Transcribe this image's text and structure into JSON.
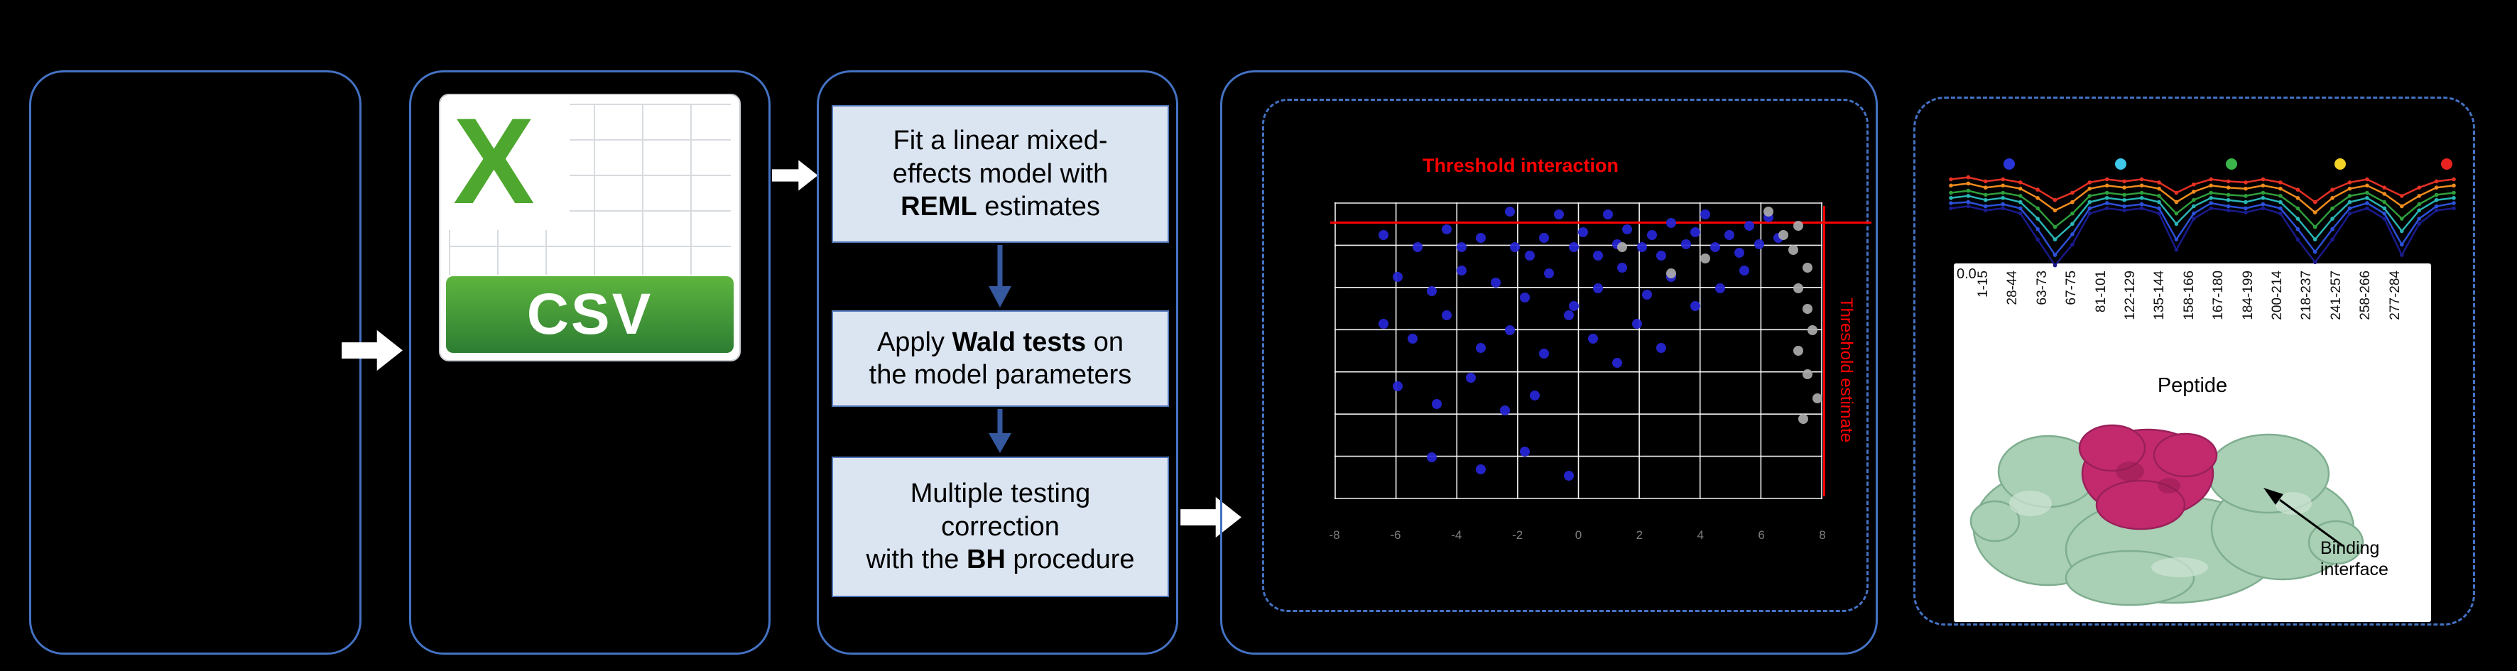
{
  "colors": {
    "box_border": "#4472c4",
    "step_fill": "#dbe5f1",
    "step_border": "#4f74b8",
    "flow_arrow": "#ffffff",
    "down_arrow": "#35589f",
    "threshold_red": "#ff0000",
    "scatter_blue": "#2626d8",
    "scatter_gray": "#ababab",
    "grid_line": "#ffffff",
    "panel_bg": "#ffffff",
    "protein_green": "#a9cfb4",
    "protein_green_edge": "#7fae90",
    "protein_magenta": "#c32a6e",
    "protein_magenta_edge": "#99205a",
    "csv_green": "#4ea72e",
    "csv_banner_top": "#5db53e",
    "csv_banner_bottom": "#2d7d32"
  },
  "csv": {
    "x_logo": "X",
    "label": "CSV"
  },
  "steps": [
    {
      "segments": [
        {
          "text": "Fit a linear mixed-\neffects model with\n"
        },
        {
          "text": "REML",
          "bold": true
        },
        {
          "text": " estimates"
        }
      ]
    },
    {
      "segments": [
        {
          "text": "Apply "
        },
        {
          "text": "Wald tests",
          "bold": true
        },
        {
          "text": " on\nthe model parameters"
        }
      ]
    },
    {
      "segments": [
        {
          "text": "Multiple testing\ncorrection\nwith the "
        },
        {
          "text": "BH",
          "bold": true
        },
        {
          "text": " procedure"
        }
      ]
    }
  ],
  "structure": {
    "label": "Binding interface"
  },
  "chart_data": [
    {
      "type": "scatter",
      "title": "Threshold interaction",
      "right_axis_label": "Threshold estimate",
      "grid": {
        "cols": 9,
        "rows": 8
      },
      "x_ticklabels": [
        "-8",
        "-6",
        "-4",
        "-2",
        "0",
        "2",
        "4",
        "6",
        "8"
      ],
      "thresholds": {
        "horizontal_pct_from_top": 7.2,
        "vertical_pct_from_left": 100.2
      },
      "series": [
        {
          "name": "significant",
          "color_key": "scatter_blue",
          "points": [
            [
              10,
              11
            ],
            [
              17,
              15
            ],
            [
              23,
              9
            ],
            [
              26,
              15
            ],
            [
              30,
              12
            ],
            [
              36,
              3
            ],
            [
              37,
              15
            ],
            [
              40,
              18
            ],
            [
              43,
              12
            ],
            [
              46,
              4
            ],
            [
              49,
              15
            ],
            [
              51,
              10
            ],
            [
              54,
              18
            ],
            [
              56,
              4
            ],
            [
              58,
              14
            ],
            [
              60,
              9
            ],
            [
              63,
              15
            ],
            [
              65,
              11
            ],
            [
              67,
              18
            ],
            [
              69,
              7
            ],
            [
              72,
              14
            ],
            [
              74,
              10
            ],
            [
              76,
              4
            ],
            [
              78,
              15
            ],
            [
              81,
              11
            ],
            [
              83,
              17
            ],
            [
              85,
              8
            ],
            [
              87,
              14
            ],
            [
              89,
              5
            ],
            [
              91,
              12
            ],
            [
              13,
              25
            ],
            [
              20,
              30
            ],
            [
              26,
              23
            ],
            [
              33,
              27
            ],
            [
              39,
              32
            ],
            [
              44,
              24
            ],
            [
              49,
              35
            ],
            [
              54,
              29
            ],
            [
              59,
              22
            ],
            [
              64,
              31
            ],
            [
              69,
              25
            ],
            [
              74,
              35
            ],
            [
              79,
              29
            ],
            [
              84,
              23
            ],
            [
              10,
              41
            ],
            [
              16,
              46
            ],
            [
              23,
              38
            ],
            [
              30,
              49
            ],
            [
              36,
              43
            ],
            [
              43,
              51
            ],
            [
              48,
              38
            ],
            [
              53,
              46
            ],
            [
              58,
              54
            ],
            [
              62,
              41
            ],
            [
              67,
              49
            ],
            [
              13,
              62
            ],
            [
              21,
              68
            ],
            [
              28,
              59
            ],
            [
              35,
              70
            ],
            [
              41,
              65
            ],
            [
              20,
              86
            ],
            [
              30,
              90
            ],
            [
              39,
              84
            ],
            [
              48,
              92
            ]
          ]
        },
        {
          "name": "not_significant",
          "color_key": "scatter_gray",
          "points": [
            [
              89,
              3
            ],
            [
              92,
              11
            ],
            [
              94,
              16
            ],
            [
              95,
              8
            ],
            [
              97,
              22
            ],
            [
              95,
              29
            ],
            [
              97,
              36
            ],
            [
              98,
              43
            ],
            [
              95,
              50
            ],
            [
              97,
              58
            ],
            [
              99,
              66
            ],
            [
              96,
              73
            ],
            [
              69,
              24
            ],
            [
              76,
              19
            ],
            [
              59,
              15
            ]
          ]
        }
      ]
    },
    {
      "type": "line",
      "ylabel_tick": "0.0",
      "xlabel": "Peptide",
      "x_ticklabels": [
        "1-15",
        "28-44",
        "63-73",
        "67-75",
        "81-101",
        "122-129",
        "135-144",
        "158-166",
        "167-180",
        "184-199",
        "200-214",
        "218-237",
        "241-257",
        "258-266",
        "277-284"
      ],
      "legend_dot_colors": [
        "#2a35d8",
        "#3fc8e8",
        "#3bb54a",
        "#f4d327",
        "#e8231f"
      ],
      "series": [
        {
          "name": "state-navy",
          "color": "#1a1a8c",
          "values": [
            0.6,
            0.62,
            0.58,
            0.6,
            0.55,
            0.3,
            0.05,
            0.25,
            0.55,
            0.6,
            0.58,
            0.6,
            0.55,
            0.2,
            0.5,
            0.6,
            0.58,
            0.56,
            0.6,
            0.55,
            0.3,
            0.08,
            0.3,
            0.55,
            0.6,
            0.5,
            0.15,
            0.45,
            0.58,
            0.6
          ]
        },
        {
          "name": "state-blue",
          "color": "#2c50d8",
          "values": [
            0.65,
            0.66,
            0.62,
            0.64,
            0.6,
            0.4,
            0.15,
            0.35,
            0.6,
            0.65,
            0.62,
            0.64,
            0.6,
            0.3,
            0.55,
            0.65,
            0.62,
            0.6,
            0.64,
            0.6,
            0.4,
            0.18,
            0.4,
            0.6,
            0.65,
            0.55,
            0.25,
            0.5,
            0.62,
            0.65
          ]
        },
        {
          "name": "state-teal",
          "color": "#2ab5b5",
          "values": [
            0.7,
            0.72,
            0.68,
            0.7,
            0.66,
            0.5,
            0.3,
            0.45,
            0.66,
            0.7,
            0.68,
            0.7,
            0.66,
            0.45,
            0.62,
            0.7,
            0.68,
            0.66,
            0.7,
            0.66,
            0.5,
            0.3,
            0.5,
            0.66,
            0.7,
            0.6,
            0.38,
            0.58,
            0.68,
            0.7
          ]
        },
        {
          "name": "state-green",
          "color": "#2f9e3c",
          "values": [
            0.75,
            0.77,
            0.73,
            0.75,
            0.72,
            0.6,
            0.42,
            0.55,
            0.72,
            0.75,
            0.73,
            0.75,
            0.72,
            0.55,
            0.68,
            0.75,
            0.73,
            0.72,
            0.75,
            0.72,
            0.6,
            0.42,
            0.6,
            0.72,
            0.75,
            0.66,
            0.5,
            0.64,
            0.73,
            0.75
          ]
        },
        {
          "name": "state-orange",
          "color": "#f08c1e",
          "values": [
            0.82,
            0.84,
            0.8,
            0.82,
            0.79,
            0.7,
            0.58,
            0.66,
            0.79,
            0.82,
            0.8,
            0.82,
            0.79,
            0.66,
            0.76,
            0.82,
            0.8,
            0.79,
            0.82,
            0.79,
            0.7,
            0.56,
            0.7,
            0.79,
            0.82,
            0.74,
            0.62,
            0.72,
            0.8,
            0.82
          ]
        },
        {
          "name": "state-red",
          "color": "#e53124",
          "values": [
            0.88,
            0.9,
            0.86,
            0.88,
            0.85,
            0.78,
            0.68,
            0.75,
            0.85,
            0.88,
            0.86,
            0.88,
            0.85,
            0.75,
            0.83,
            0.88,
            0.86,
            0.85,
            0.88,
            0.85,
            0.78,
            0.66,
            0.78,
            0.85,
            0.88,
            0.8,
            0.72,
            0.8,
            0.86,
            0.88
          ]
        }
      ]
    }
  ]
}
